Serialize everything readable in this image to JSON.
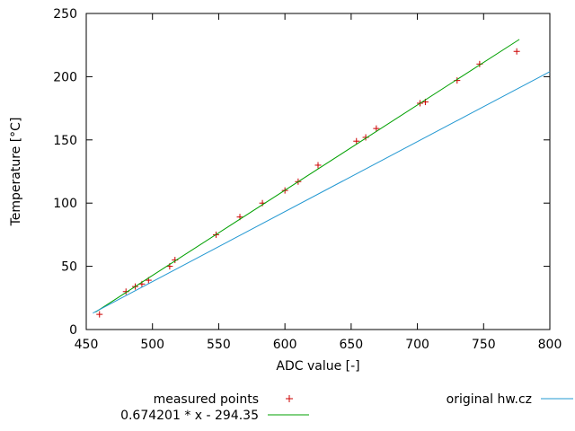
{
  "chart_data": {
    "type": "scatter",
    "title": "",
    "xlabel": "ADC value [-]",
    "ylabel": "Temperature [°C]",
    "xlim": [
      450,
      800
    ],
    "ylim": [
      0,
      250
    ],
    "xticks": [
      450,
      500,
      550,
      600,
      650,
      700,
      750,
      800
    ],
    "yticks": [
      0,
      50,
      100,
      150,
      200,
      250
    ],
    "grid": false,
    "legend_position": "below-plot",
    "axis_color": "#000000",
    "background_color": "#ffffff",
    "series": [
      {
        "name": "measured points",
        "type": "points",
        "marker": "plus",
        "color": "#cc0000",
        "points": [
          [
            460,
            12
          ],
          [
            480,
            30
          ],
          [
            487,
            34
          ],
          [
            492,
            36
          ],
          [
            497,
            39
          ],
          [
            513,
            50
          ],
          [
            517,
            55
          ],
          [
            548,
            75
          ],
          [
            566,
            89
          ],
          [
            583,
            100
          ],
          [
            600,
            110
          ],
          [
            610,
            117
          ],
          [
            625,
            130
          ],
          [
            654,
            149
          ],
          [
            661,
            152
          ],
          [
            669,
            159
          ],
          [
            702,
            179
          ],
          [
            706,
            180
          ],
          [
            730,
            197
          ],
          [
            747,
            210
          ],
          [
            775,
            220
          ]
        ]
      },
      {
        "name": "0.674201 * x - 294.35",
        "type": "line",
        "color": "#00a000",
        "slope": 0.674201,
        "intercept": -294.35,
        "points": [
          [
            457,
            13.8
          ],
          [
            777,
            229.5
          ]
        ]
      },
      {
        "name": "original hw.cz",
        "type": "line",
        "color": "#2398d2",
        "points": [
          [
            455,
            13
          ],
          [
            800,
            204
          ]
        ]
      }
    ]
  }
}
